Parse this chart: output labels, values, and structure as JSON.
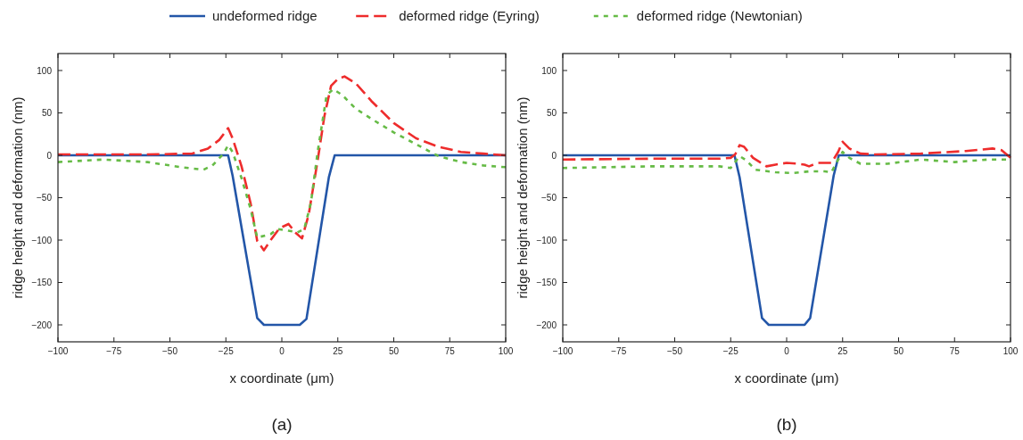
{
  "chart_data": [
    {
      "type": "line",
      "xlabel": "x coordinate (μm)",
      "ylabel": "ridge height and deformation (nm)",
      "xlim": [
        -100,
        100
      ],
      "ylim": [
        -220,
        120
      ],
      "xticks": [
        -100,
        -75,
        -50,
        -25,
        0,
        25,
        50,
        75,
        100
      ],
      "yticks": [
        -200,
        -150,
        -100,
        -50,
        0,
        50,
        100
      ],
      "legend": "top",
      "annotations": [
        "(a)"
      ],
      "series": [
        {
          "name": "undeformed ridge",
          "color": "#2356a8",
          "line_style": "solid",
          "x": [
            -100,
            -24,
            -22,
            -11,
            -8,
            8,
            11,
            21,
            23.6,
            100
          ],
          "values": [
            0,
            0,
            -24,
            -192,
            -200,
            -200,
            -193,
            -26,
            0,
            0
          ]
        },
        {
          "name": "deformed ridge (Eyring)",
          "color": "#ee2c2c",
          "line_style": "dashed",
          "x": [
            -100,
            -60,
            -40,
            -33,
            -28,
            -24,
            -22,
            -18,
            -14,
            -11,
            -8,
            -5,
            -1,
            3,
            6,
            9,
            12,
            16,
            19,
            22,
            25,
            28,
            33,
            40,
            50,
            60,
            70,
            80,
            90,
            100
          ],
          "values": [
            1,
            1,
            2,
            8,
            18,
            32,
            20,
            -13,
            -56,
            -101,
            -112,
            -100,
            -86,
            -81,
            -91,
            -98,
            -70,
            -6,
            46,
            82,
            90,
            93,
            85,
            64,
            38,
            20,
            10,
            4,
            2,
            0
          ]
        },
        {
          "name": "deformed ridge (Newtonian)",
          "color": "#66bb46",
          "line_style": "dotted",
          "x": [
            -100,
            -80,
            -60,
            -45,
            -35,
            -31,
            -26,
            -24,
            -22,
            -18,
            -14,
            -11,
            -5,
            -2,
            3,
            7,
            10,
            13,
            16,
            20,
            23,
            27,
            33,
            40,
            50,
            60,
            70,
            80,
            90,
            100
          ],
          "values": [
            -8,
            -5,
            -8,
            -14,
            -17,
            -12,
            2,
            12,
            4,
            -27,
            -63,
            -97,
            -93,
            -87,
            -89,
            -91,
            -87,
            -56,
            4,
            71,
            78,
            71,
            55,
            43,
            27,
            13,
            -1,
            -8,
            -12,
            -14
          ]
        }
      ]
    },
    {
      "type": "line",
      "xlabel": "x coordinate (μm)",
      "ylabel": "ridge height and deformation (nm)",
      "xlim": [
        -100,
        100
      ],
      "ylim": [
        -220,
        120
      ],
      "xticks": [
        -100,
        -75,
        -50,
        -25,
        0,
        25,
        50,
        75,
        100
      ],
      "yticks": [
        -200,
        -150,
        -100,
        -50,
        0,
        50,
        100
      ],
      "annotations": [
        "(b)"
      ],
      "series": [
        {
          "color": "#2356a8",
          "line_style": "solid",
          "x": [
            -100,
            -23.3,
            -21,
            -11,
            -8,
            8,
            10.5,
            21,
            23.3,
            100
          ],
          "values": [
            0,
            0,
            -26,
            -192,
            -200,
            -200,
            -192,
            -24,
            0,
            0
          ]
        },
        {
          "color": "#ee2c2c",
          "line_style": "dashed",
          "x": [
            -100,
            -60,
            -30,
            -25,
            -23,
            -21,
            -19,
            -15,
            -9,
            -5,
            0,
            5,
            8,
            10,
            14,
            20,
            23,
            25,
            28,
            33,
            40,
            60,
            80,
            92,
            96,
            100
          ],
          "values": [
            -5,
            -4,
            -4,
            -3,
            1,
            12,
            10,
            -3,
            -13,
            -11,
            -9,
            -10,
            -11,
            -13,
            -9,
            -9,
            4,
            16,
            8,
            2,
            1,
            2,
            5,
            8,
            6,
            -3
          ]
        },
        {
          "color": "#66bb46",
          "line_style": "dotted",
          "x": [
            -100,
            -60,
            -30,
            -25,
            -23,
            -21,
            -18,
            -14,
            -5,
            3,
            10,
            17,
            20,
            22,
            25,
            28,
            33,
            45,
            60,
            75,
            90,
            98
          ],
          "values": [
            -15,
            -13,
            -13,
            -15,
            -8,
            -1,
            -6,
            -17,
            -20,
            -21,
            -19,
            -19,
            -20,
            -10,
            4,
            -3,
            -10,
            -10,
            -5,
            -8,
            -5,
            -5
          ]
        }
      ]
    }
  ]
}
